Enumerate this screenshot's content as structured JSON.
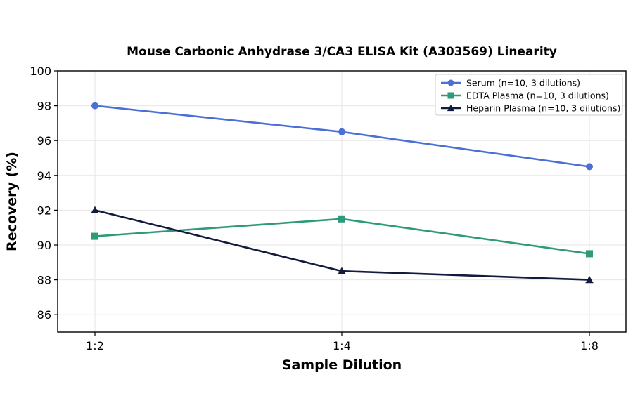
{
  "chart_data": {
    "type": "line",
    "title": "Mouse Carbonic Anhydrase 3/CA3 ELISA Kit (A303569) Linearity",
    "xlabel": "Sample Dilution",
    "ylabel": "Recovery (%)",
    "categories": [
      "1:2",
      "1:4",
      "1:8"
    ],
    "ylim": [
      85,
      100
    ],
    "yticks": [
      86,
      88,
      90,
      92,
      94,
      96,
      98,
      100
    ],
    "grid": true,
    "legend_position": "top-right",
    "series": [
      {
        "name": "Serum (n=10, 3 dilutions)",
        "values": [
          98.0,
          96.5,
          94.5
        ],
        "color": "#4a6fd6",
        "marker": "circle"
      },
      {
        "name": "EDTA Plasma (n=10, 3 dilutions)",
        "values": [
          90.5,
          91.5,
          89.5
        ],
        "color": "#2e9a7a",
        "marker": "square"
      },
      {
        "name": "Heparin Plasma (n=10, 3 dilutions)",
        "values": [
          92.0,
          88.5,
          88.0
        ],
        "color": "#121a3e",
        "marker": "triangle"
      }
    ]
  }
}
